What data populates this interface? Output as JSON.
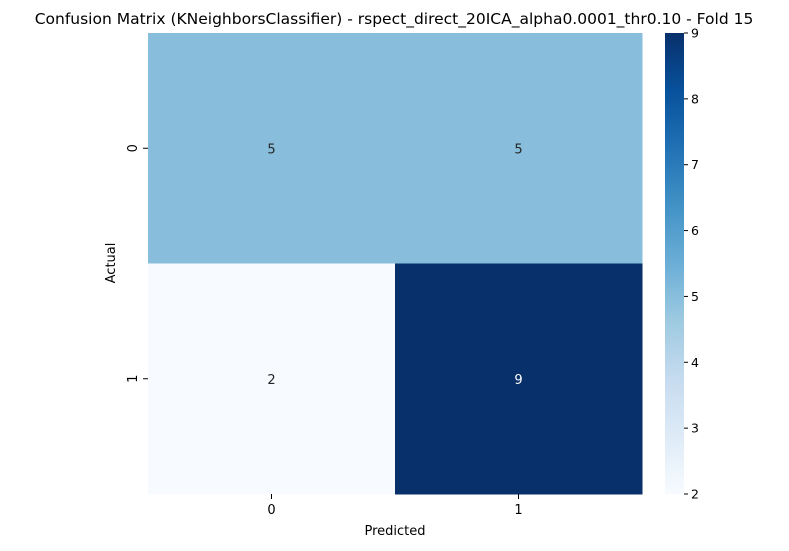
{
  "chart_data": {
    "type": "heatmap",
    "title": "Confusion Matrix (KNeighborsClassifier) - rspect_direct_20ICA_alpha0.0001_thr0.10 - Fold 15",
    "xlabel": "Predicted",
    "ylabel": "Actual",
    "x_categories": [
      "0",
      "1"
    ],
    "y_categories": [
      "0",
      "1"
    ],
    "values": [
      [
        5,
        5
      ],
      [
        2,
        9
      ]
    ],
    "colormap": "Blues",
    "color_low": "#f7fbff",
    "color_high": "#08306b",
    "vmin": 2,
    "vmax": 9,
    "colorbar_ticks": [
      "2",
      "3",
      "4",
      "5",
      "6",
      "7",
      "8",
      "9"
    ],
    "legend": "colorbar-right",
    "grid": false
  }
}
